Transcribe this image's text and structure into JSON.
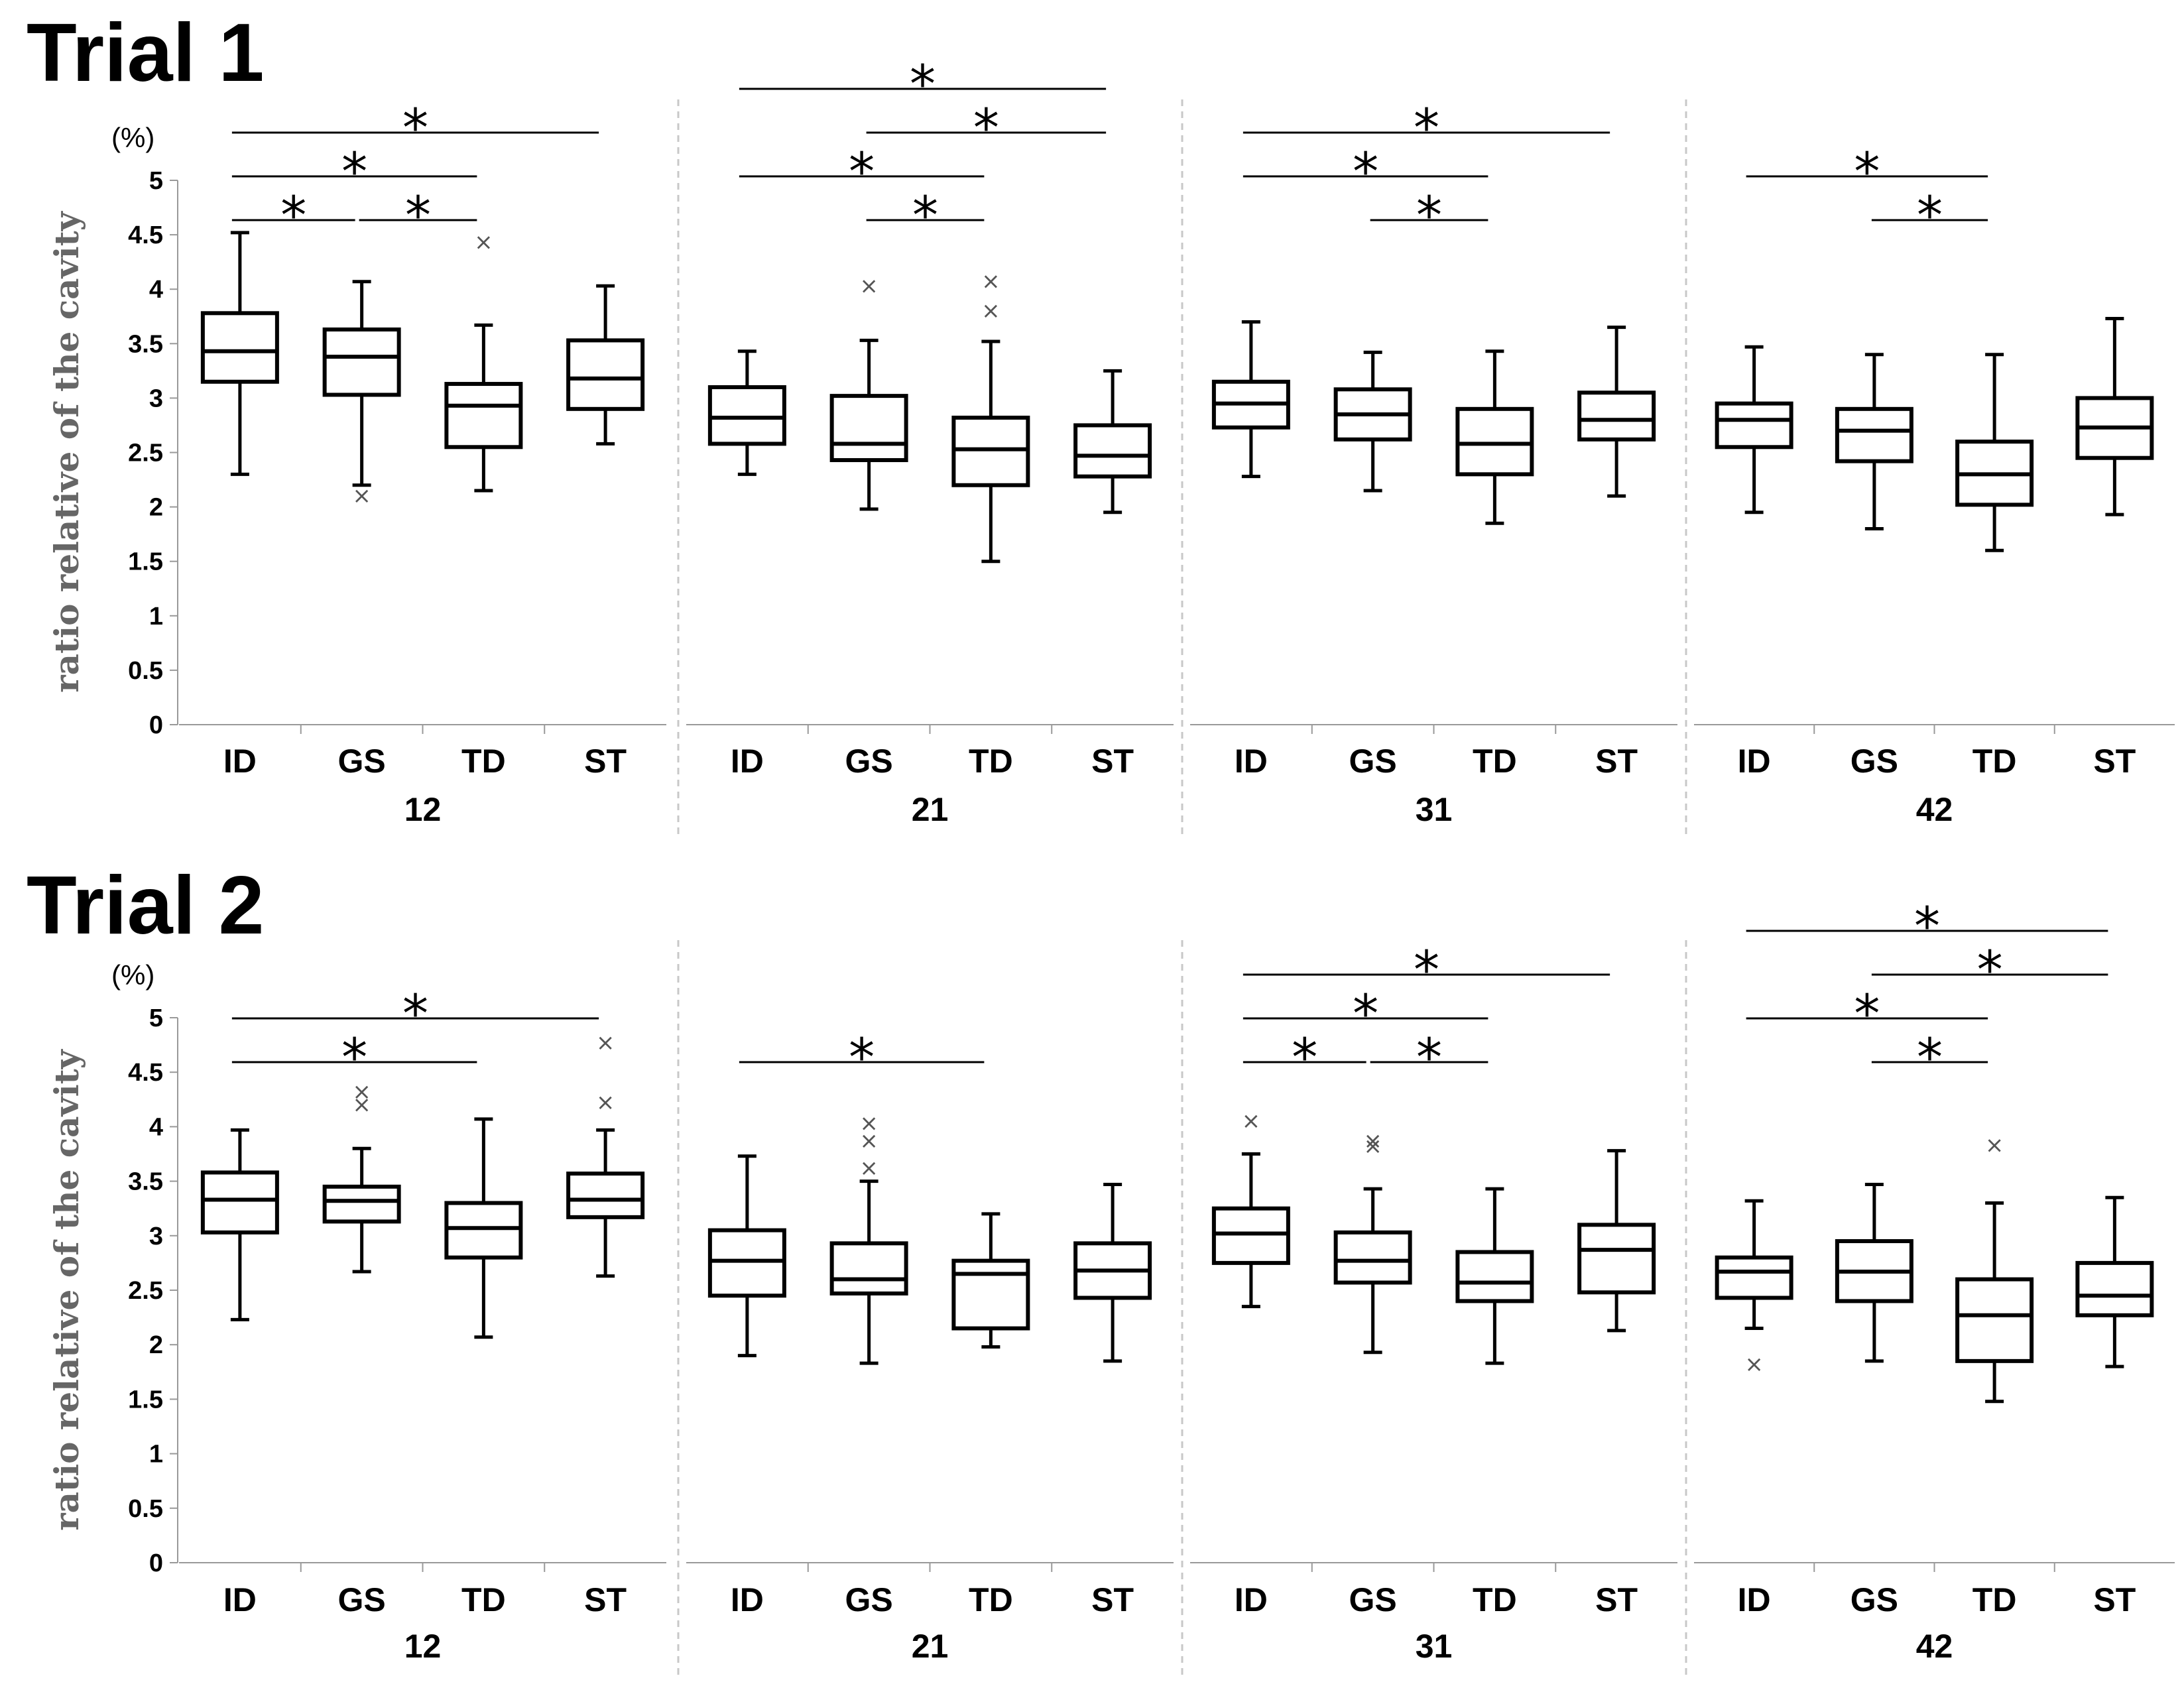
{
  "chart_data": {
    "type": "box",
    "ylabel": "ratio relative of the cavity",
    "unit": "(%)",
    "ylim": [
      0,
      5
    ],
    "yticks": [
      "0",
      "0.5",
      "1",
      "1.5",
      "2",
      "2.5",
      "3",
      "3.5",
      "4",
      "4.5",
      "5"
    ],
    "categories": [
      "ID",
      "GS",
      "TD",
      "ST"
    ],
    "significance_symbol": "*",
    "trials": [
      {
        "title": "Trial 1",
        "panels": [
          {
            "group": "12",
            "boxes": [
              {
                "min": 2.3,
                "q1": 3.15,
                "median": 3.43,
                "q3": 3.78,
                "max": 4.52,
                "outliers": []
              },
              {
                "min": 2.2,
                "q1": 3.03,
                "median": 3.38,
                "q3": 3.63,
                "max": 4.07,
                "outliers": [
                  2.1
                ]
              },
              {
                "min": 2.15,
                "q1": 2.55,
                "median": 2.93,
                "q3": 3.13,
                "max": 3.67,
                "outliers": [
                  4.43
                ]
              },
              {
                "min": 2.58,
                "q1": 2.9,
                "median": 3.18,
                "q3": 3.53,
                "max": 4.03,
                "outliers": []
              }
            ],
            "sig": [
              [
                0,
                1
              ],
              [
                1,
                2
              ],
              [
                0,
                2
              ],
              [
                0,
                3
              ]
            ]
          },
          {
            "group": "21",
            "boxes": [
              {
                "min": 2.3,
                "q1": 2.58,
                "median": 2.82,
                "q3": 3.1,
                "max": 3.43,
                "outliers": []
              },
              {
                "min": 1.98,
                "q1": 2.43,
                "median": 2.58,
                "q3": 3.02,
                "max": 3.53,
                "outliers": [
                  4.03
                ]
              },
              {
                "min": 1.5,
                "q1": 2.2,
                "median": 2.53,
                "q3": 2.82,
                "max": 3.52,
                "outliers": [
                  3.8,
                  4.07
                ]
              },
              {
                "min": 1.95,
                "q1": 2.28,
                "median": 2.47,
                "q3": 2.75,
                "max": 3.25,
                "outliers": []
              }
            ],
            "sig": [
              [
                1,
                2
              ],
              [
                0,
                2
              ],
              [
                0,
                3
              ],
              [
                1,
                3
              ]
            ]
          },
          {
            "group": "31",
            "boxes": [
              {
                "min": 2.28,
                "q1": 2.73,
                "median": 2.95,
                "q3": 3.15,
                "max": 3.7,
                "outliers": []
              },
              {
                "min": 2.15,
                "q1": 2.62,
                "median": 2.85,
                "q3": 3.08,
                "max": 3.42,
                "outliers": []
              },
              {
                "min": 1.85,
                "q1": 2.3,
                "median": 2.58,
                "q3": 2.9,
                "max": 3.43,
                "outliers": []
              },
              {
                "min": 2.1,
                "q1": 2.62,
                "median": 2.8,
                "q3": 3.05,
                "max": 3.65,
                "outliers": []
              }
            ],
            "sig": [
              [
                1,
                2
              ],
              [
                0,
                2
              ],
              [
                0,
                3
              ]
            ]
          },
          {
            "group": "42",
            "boxes": [
              {
                "min": 1.95,
                "q1": 2.55,
                "median": 2.8,
                "q3": 2.95,
                "max": 3.47,
                "outliers": []
              },
              {
                "min": 1.8,
                "q1": 2.42,
                "median": 2.7,
                "q3": 2.9,
                "max": 3.4,
                "outliers": []
              },
              {
                "min": 1.6,
                "q1": 2.02,
                "median": 2.3,
                "q3": 2.6,
                "max": 3.4,
                "outliers": []
              },
              {
                "min": 1.93,
                "q1": 2.45,
                "median": 2.73,
                "q3": 3.0,
                "max": 3.73,
                "outliers": []
              }
            ],
            "sig": [
              [
                1,
                2
              ],
              [
                0,
                2
              ]
            ]
          }
        ]
      },
      {
        "title": "Trial 2",
        "panels": [
          {
            "group": "12",
            "boxes": [
              {
                "min": 2.23,
                "q1": 3.03,
                "median": 3.33,
                "q3": 3.58,
                "max": 3.97,
                "outliers": []
              },
              {
                "min": 2.67,
                "q1": 3.13,
                "median": 3.32,
                "q3": 3.45,
                "max": 3.8,
                "outliers": [
                  4.2,
                  4.32
                ]
              },
              {
                "min": 2.07,
                "q1": 2.8,
                "median": 3.07,
                "q3": 3.3,
                "max": 4.07,
                "outliers": []
              },
              {
                "min": 2.63,
                "q1": 3.17,
                "median": 3.33,
                "q3": 3.57,
                "max": 3.97,
                "outliers": [
                  4.22,
                  4.77
                ]
              }
            ],
            "sig": [
              [
                0,
                2
              ],
              [
                0,
                3
              ]
            ]
          },
          {
            "group": "21",
            "boxes": [
              {
                "min": 1.9,
                "q1": 2.45,
                "median": 2.77,
                "q3": 3.05,
                "max": 3.73,
                "outliers": []
              },
              {
                "min": 1.83,
                "q1": 2.47,
                "median": 2.6,
                "q3": 2.93,
                "max": 3.5,
                "outliers": [
                  3.62,
                  3.87,
                  4.03
                ]
              },
              {
                "min": 1.98,
                "q1": 2.15,
                "median": 2.65,
                "q3": 2.77,
                "max": 3.2,
                "outliers": []
              },
              {
                "min": 1.85,
                "q1": 2.43,
                "median": 2.68,
                "q3": 2.93,
                "max": 3.47,
                "outliers": []
              }
            ],
            "sig": [
              [
                0,
                2
              ]
            ]
          },
          {
            "group": "31",
            "boxes": [
              {
                "min": 2.35,
                "q1": 2.75,
                "median": 3.02,
                "q3": 3.25,
                "max": 3.75,
                "outliers": [
                  4.05
                ]
              },
              {
                "min": 1.93,
                "q1": 2.57,
                "median": 2.77,
                "q3": 3.03,
                "max": 3.43,
                "outliers": [
                  3.82,
                  3.87
                ]
              },
              {
                "min": 1.83,
                "q1": 2.4,
                "median": 2.57,
                "q3": 2.85,
                "max": 3.43,
                "outliers": []
              },
              {
                "min": 2.13,
                "q1": 2.48,
                "median": 2.87,
                "q3": 3.1,
                "max": 3.78,
                "outliers": []
              }
            ],
            "sig": [
              [
                0,
                1
              ],
              [
                1,
                2
              ],
              [
                0,
                2
              ],
              [
                0,
                3
              ]
            ]
          },
          {
            "group": "42",
            "boxes": [
              {
                "min": 2.15,
                "q1": 2.43,
                "median": 2.67,
                "q3": 2.8,
                "max": 3.32,
                "outliers": [
                  1.82
                ]
              },
              {
                "min": 1.85,
                "q1": 2.4,
                "median": 2.67,
                "q3": 2.95,
                "max": 3.47,
                "outliers": []
              },
              {
                "min": 1.48,
                "q1": 1.85,
                "median": 2.27,
                "q3": 2.6,
                "max": 3.3,
                "outliers": [
                  3.83
                ]
              },
              {
                "min": 1.8,
                "q1": 2.27,
                "median": 2.45,
                "q3": 2.75,
                "max": 3.35,
                "outliers": []
              }
            ],
            "sig": [
              [
                1,
                2
              ],
              [
                0,
                2
              ],
              [
                0,
                3
              ],
              [
                1,
                3
              ]
            ]
          }
        ]
      }
    ]
  }
}
